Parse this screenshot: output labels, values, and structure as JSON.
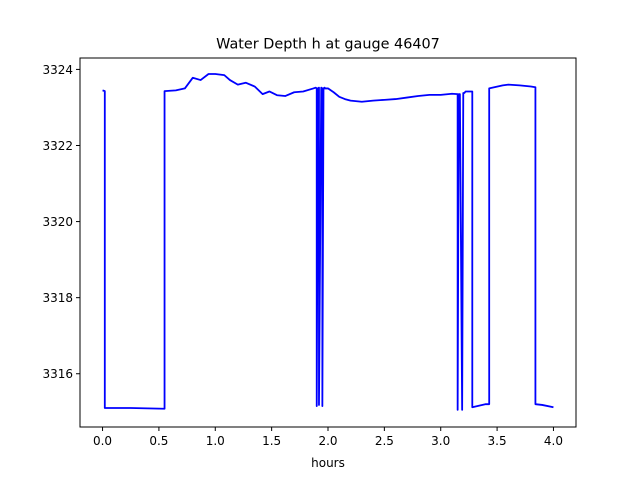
{
  "chart_data": {
    "type": "line",
    "title": "Water Depth h at gauge 46407",
    "xlabel": "hours",
    "ylabel": "",
    "xlim": [
      -0.2,
      4.2
    ],
    "ylim": [
      3314.6,
      3324.3
    ],
    "xticks": [
      0.0,
      0.5,
      1.0,
      1.5,
      2.0,
      2.5,
      3.0,
      3.5,
      4.0
    ],
    "xtick_labels": [
      "0.0",
      "0.5",
      "1.0",
      "1.5",
      "2.0",
      "2.5",
      "3.0",
      "3.5",
      "4.0"
    ],
    "yticks": [
      3316,
      3318,
      3320,
      3322,
      3324
    ],
    "ytick_labels": [
      "3316",
      "3318",
      "3320",
      "3322",
      "3324"
    ],
    "grid": false,
    "color": "#0000ff",
    "series": [
      {
        "x": [
          0.0,
          0.02,
          0.02,
          0.25,
          0.55,
          0.55,
          0.65,
          0.73,
          0.8,
          0.87,
          0.94,
          1.0,
          1.08,
          1.13,
          1.2,
          1.27,
          1.35,
          1.42,
          1.48,
          1.55,
          1.62,
          1.7,
          1.78,
          1.87,
          1.89,
          1.9,
          1.9,
          1.91,
          1.92,
          1.92,
          1.94,
          1.95,
          1.95,
          1.96,
          1.97,
          1.97,
          2.0,
          2.05,
          2.1,
          2.15,
          2.2,
          2.3,
          2.4,
          2.5,
          2.6,
          2.7,
          2.8,
          2.9,
          3.0,
          3.1,
          3.15,
          3.15,
          3.16,
          3.17,
          3.19,
          3.2,
          3.2,
          3.21,
          3.22,
          3.25,
          3.28,
          3.28,
          3.4,
          3.43,
          3.43,
          3.55,
          3.6,
          3.7,
          3.8,
          3.84,
          3.84,
          3.9,
          4.0
        ],
        "y": [
          3323.45,
          3323.43,
          3315.1,
          3315.1,
          3315.08,
          3323.43,
          3323.45,
          3323.5,
          3323.78,
          3323.72,
          3323.88,
          3323.88,
          3323.85,
          3323.72,
          3323.6,
          3323.65,
          3323.55,
          3323.35,
          3323.42,
          3323.32,
          3323.3,
          3323.4,
          3323.42,
          3323.5,
          3323.52,
          3323.5,
          3315.15,
          3323.5,
          3323.52,
          3315.18,
          3323.52,
          3323.5,
          3315.15,
          3323.5,
          3323.52,
          3323.5,
          3323.5,
          3323.4,
          3323.28,
          3323.22,
          3323.18,
          3323.15,
          3323.18,
          3323.2,
          3323.22,
          3323.26,
          3323.3,
          3323.33,
          3323.33,
          3323.36,
          3323.35,
          3315.05,
          3323.35,
          3323.35,
          3315.05,
          3323.35,
          3323.38,
          3323.38,
          3323.42,
          3323.42,
          3323.42,
          3315.12,
          3315.2,
          3315.2,
          3323.5,
          3323.58,
          3323.6,
          3323.58,
          3323.55,
          3323.53,
          3315.2,
          3315.18,
          3315.12
        ]
      }
    ]
  }
}
